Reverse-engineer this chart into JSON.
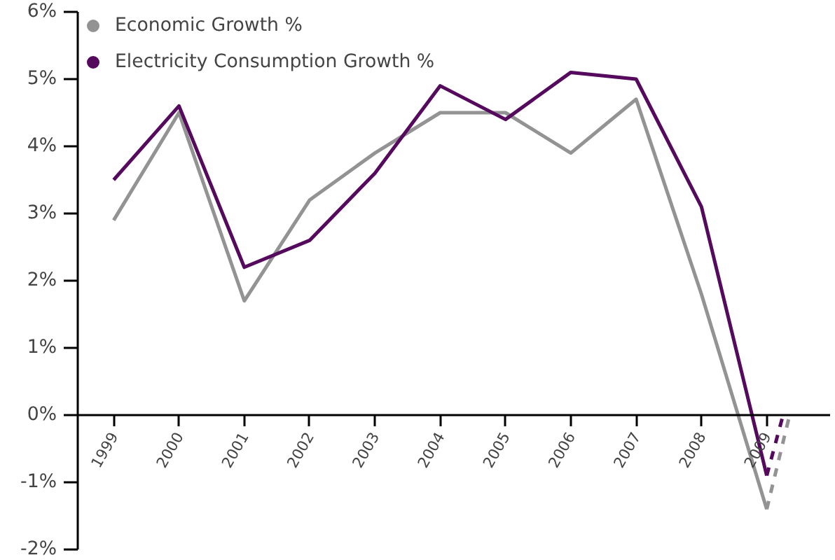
{
  "chart_data": {
    "type": "line",
    "x": [
      1999,
      2000,
      2001,
      2002,
      2003,
      2004,
      2005,
      2006,
      2007,
      2008,
      2009
    ],
    "series": [
      {
        "name": "Economic Growth %",
        "color": "#939393",
        "values": [
          2.9,
          4.5,
          1.7,
          3.2,
          3.9,
          4.5,
          4.5,
          3.9,
          4.7,
          1.8,
          -1.4
        ]
      },
      {
        "name": "Electricity Consumption Growth %",
        "color": "#550a5e",
        "values": [
          3.5,
          4.6,
          2.2,
          2.6,
          3.6,
          4.9,
          4.4,
          5.1,
          5.0,
          3.1,
          -0.9
        ]
      },
      {
        "color": "#939393",
        "x": [
          2009,
          2009.35
        ],
        "values": [
          -1.4,
          0
        ],
        "line_style": "dashed"
      },
      {
        "color": "#550a5e",
        "x": [
          2009,
          2009.25
        ],
        "values": [
          -0.9,
          0
        ],
        "line_style": "dashed"
      }
    ],
    "xlim": [
      1998.45,
      2009.97
    ],
    "xticks": [
      1999,
      2000,
      2001,
      2002,
      2003,
      2004,
      2005,
      2006,
      2007,
      2008,
      2009
    ],
    "ylim": [
      -2,
      6
    ],
    "yticks": [
      {
        "value": -2,
        "label": "-2%"
      },
      {
        "value": -1,
        "label": "-1%"
      },
      {
        "value": 0,
        "label": "0%"
      },
      {
        "value": 1,
        "label": "1%"
      },
      {
        "value": 2,
        "label": "2%"
      },
      {
        "value": 3,
        "label": "3%"
      },
      {
        "value": 4,
        "label": "4%"
      },
      {
        "value": 5,
        "label": "5%"
      },
      {
        "value": 6,
        "label": "6%"
      }
    ],
    "grid": false,
    "legend": "top left",
    "marker": "none",
    "line_style": "solid"
  }
}
